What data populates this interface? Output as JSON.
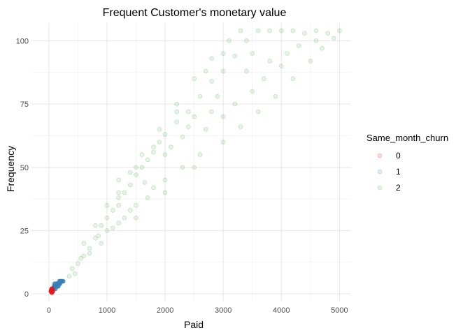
{
  "chart_data": {
    "type": "scatter",
    "title": "Frequent Customer's monetary value",
    "xlabel": "Paid",
    "ylabel": "Frequency",
    "xlim": [
      -300,
      5200
    ],
    "ylim": [
      -3,
      107
    ],
    "x_ticks": [
      0,
      1000,
      2000,
      3000,
      4000,
      5000
    ],
    "x_tick_labels": [
      "0",
      "1000",
      "2000",
      "3000",
      "4000",
      "5000"
    ],
    "y_ticks": [
      0,
      25,
      50,
      75,
      100
    ],
    "y_tick_labels": [
      "0",
      "25",
      "50",
      "75",
      "100"
    ],
    "grid": true,
    "legend": {
      "title": "Same_month_churn",
      "position": "right",
      "entries": [
        {
          "label": "0",
          "color": "#E41A1C"
        },
        {
          "label": "1",
          "color": "#377EB8"
        },
        {
          "label": "2",
          "color": "#4DAF4A"
        }
      ]
    },
    "point_alpha": 0.15,
    "series": [
      {
        "name": "2",
        "color": "#4DAF4A",
        "points": [
          [
            250,
            5
          ],
          [
            400,
            10
          ],
          [
            450,
            8
          ],
          [
            600,
            15
          ],
          [
            700,
            18
          ],
          [
            800,
            22
          ],
          [
            900,
            27
          ],
          [
            1000,
            30
          ],
          [
            1100,
            33
          ],
          [
            1200,
            35
          ],
          [
            1300,
            40
          ],
          [
            1400,
            43
          ],
          [
            1500,
            47
          ],
          [
            1600,
            50
          ],
          [
            1700,
            53
          ],
          [
            1800,
            56
          ],
          [
            1900,
            60
          ],
          [
            2000,
            63
          ],
          [
            2200,
            68
          ],
          [
            2400,
            72
          ],
          [
            2600,
            78
          ],
          [
            2800,
            84
          ],
          [
            3000,
            88
          ],
          [
            3200,
            94
          ],
          [
            3400,
            100
          ],
          [
            3600,
            104
          ],
          [
            3800,
            104
          ],
          [
            4000,
            104
          ],
          [
            4200,
            104
          ],
          [
            4400,
            103
          ],
          [
            4600,
            104
          ],
          [
            4800,
            103
          ],
          [
            5000,
            104
          ],
          [
            1000,
            25
          ],
          [
            1200,
            28
          ],
          [
            1500,
            35
          ],
          [
            1800,
            42
          ],
          [
            2000,
            45
          ],
          [
            2300,
            50
          ],
          [
            2600,
            55
          ],
          [
            3000,
            60
          ],
          [
            3300,
            66
          ],
          [
            3600,
            72
          ],
          [
            3900,
            78
          ],
          [
            4200,
            85
          ],
          [
            4500,
            92
          ],
          [
            4700,
            97
          ],
          [
            4900,
            101
          ],
          [
            600,
            20
          ],
          [
            800,
            27
          ],
          [
            1000,
            35
          ],
          [
            1200,
            40
          ],
          [
            1400,
            48
          ],
          [
            1600,
            55
          ],
          [
            1900,
            65
          ],
          [
            2200,
            75
          ],
          [
            2500,
            85
          ],
          [
            2800,
            93
          ],
          [
            3100,
            100
          ],
          [
            3300,
            104
          ],
          [
            1500,
            30
          ],
          [
            2000,
            40
          ],
          [
            2500,
            50
          ],
          [
            3000,
            70
          ],
          [
            3500,
            80
          ],
          [
            4000,
            90
          ],
          [
            2500,
            70
          ],
          [
            3500,
            95
          ],
          [
            1200,
            45
          ],
          [
            2000,
            55
          ],
          [
            2700,
            65
          ],
          [
            3200,
            75
          ],
          [
            3700,
            85
          ],
          [
            4100,
            95
          ],
          [
            2300,
            62
          ],
          [
            2900,
            78
          ],
          [
            1700,
            38
          ],
          [
            1300,
            30
          ],
          [
            900,
            20
          ],
          [
            500,
            12
          ],
          [
            350,
            7
          ],
          [
            700,
            16
          ],
          [
            1100,
            26
          ],
          [
            1400,
            33
          ],
          [
            1650,
            44
          ],
          [
            2100,
            58
          ],
          [
            2400,
            66
          ],
          [
            2800,
            72
          ],
          [
            3400,
            88
          ],
          [
            3800,
            92
          ],
          [
            4300,
            98
          ],
          [
            4600,
            100
          ],
          [
            3000,
            95
          ],
          [
            2700,
            88
          ],
          [
            2200,
            72
          ],
          [
            1800,
            58
          ],
          [
            1500,
            50
          ],
          [
            1200,
            38
          ],
          [
            850,
            23
          ],
          [
            550,
            14
          ]
        ]
      },
      {
        "name": "1",
        "color": "#377EB8",
        "points": [
          [
            80,
            2
          ],
          [
            100,
            3
          ],
          [
            120,
            3
          ],
          [
            150,
            4
          ],
          [
            170,
            4
          ],
          [
            200,
            5
          ],
          [
            220,
            5
          ],
          [
            90,
            3
          ],
          [
            140,
            4
          ],
          [
            180,
            5
          ],
          [
            110,
            2
          ],
          [
            160,
            3
          ],
          [
            60,
            2
          ],
          [
            130,
            4
          ],
          [
            190,
            4
          ],
          [
            210,
            5
          ],
          [
            240,
            5
          ],
          [
            100,
            4
          ],
          [
            150,
            3
          ],
          [
            70,
            2
          ]
        ]
      },
      {
        "name": "0",
        "color": "#E41A1C",
        "points": [
          [
            40,
            1
          ],
          [
            50,
            1
          ],
          [
            60,
            1
          ],
          [
            45,
            2
          ],
          [
            55,
            2
          ],
          [
            35,
            1
          ],
          [
            65,
            1
          ],
          [
            50,
            0.5
          ],
          [
            42,
            1.5
          ],
          [
            58,
            1.5
          ]
        ]
      }
    ]
  }
}
